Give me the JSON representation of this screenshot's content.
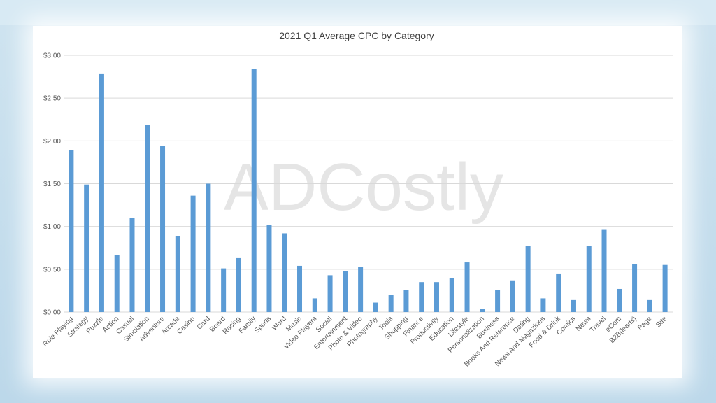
{
  "chart_data": {
    "type": "bar",
    "title": "2021 Q1 Average CPC by Category",
    "watermark": "ADCostly",
    "categories": [
      "Role Playing",
      "Strategy",
      "Puzzle",
      "Action",
      "Casual",
      "Simulation",
      "Adventure",
      "Arcade",
      "Casino",
      "Card",
      "Board",
      "Racing",
      "Family",
      "Sports",
      "Word",
      "Music",
      "Video Players",
      "Social",
      "Entertainment",
      "Photo & Video",
      "Photography",
      "Tools",
      "Shopping",
      "Finance",
      "Productivity",
      "Education",
      "Lifestyle",
      "Personalization",
      "Business",
      "Books And Reference",
      "Dating",
      "News And Magazines",
      "Food & Drink",
      "Comics",
      "News",
      "Travel",
      "eCom",
      "B2B(leads)",
      "Page",
      "Site"
    ],
    "values": [
      1.89,
      1.49,
      2.78,
      0.67,
      1.1,
      2.19,
      1.94,
      0.89,
      1.36,
      1.5,
      0.51,
      0.63,
      2.84,
      1.02,
      0.92,
      0.54,
      0.16,
      0.43,
      0.48,
      0.53,
      0.11,
      0.2,
      0.26,
      0.35,
      0.35,
      0.4,
      0.58,
      0.04,
      0.26,
      0.37,
      0.77,
      0.16,
      0.45,
      0.14,
      0.77,
      0.96,
      0.27,
      0.56,
      0.14,
      0.55
    ],
    "color": "#5b9bd5",
    "ylim": [
      0,
      3
    ],
    "yticks": [
      {
        "value": 0,
        "label": "$0.00"
      },
      {
        "value": 0.5,
        "label": "$0.50"
      },
      {
        "value": 1,
        "label": "$1.00"
      },
      {
        "value": 1.5,
        "label": "$1.50"
      },
      {
        "value": 2,
        "label": "$2.00"
      },
      {
        "value": 2.5,
        "label": "$2.50"
      },
      {
        "value": 3,
        "label": "$3.00"
      }
    ],
    "grid": true
  }
}
